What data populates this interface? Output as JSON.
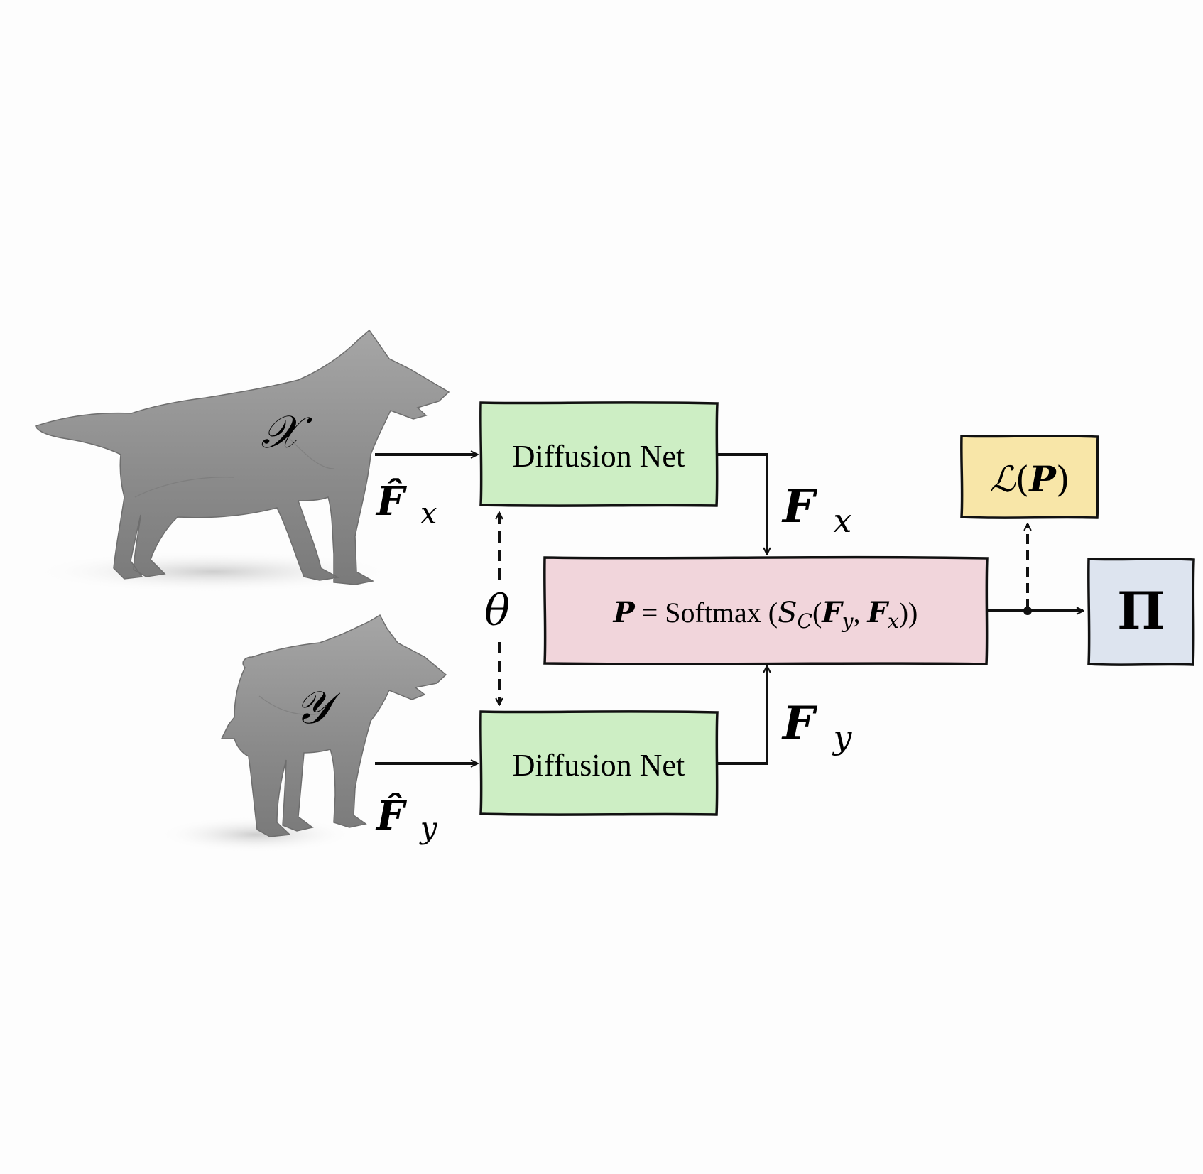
{
  "shapes": {
    "x_label": "𝒳",
    "y_label": "𝒴"
  },
  "inputs": {
    "fx_hat": {
      "base": "F̂",
      "sub": "x"
    },
    "fy_hat": {
      "base": "F̂",
      "sub": "y"
    }
  },
  "diffusion_net_top": {
    "label": "Diffusion Net"
  },
  "diffusion_net_bottom": {
    "label": "Diffusion Net"
  },
  "shared_weights": {
    "label": "θ"
  },
  "outputs": {
    "fx": {
      "base": "F",
      "sub": "x"
    },
    "fy": {
      "base": "F",
      "sub": "y"
    }
  },
  "softmax_box": {
    "lhs": "P",
    "eq": " = ",
    "func": "Softmax",
    "open": " (",
    "s": "S",
    "s_sub": "C",
    "args_open": "(",
    "arg1": "F",
    "arg1_sub": "y",
    "comma": ", ",
    "arg2": "F",
    "arg2_sub": "x",
    "close": "))"
  },
  "loss_box": {
    "func": "ℒ",
    "open": "(",
    "arg": "P",
    "close": ")"
  },
  "output_box": {
    "label": "Π"
  },
  "colors": {
    "diffusion_fill": "#cdeec4",
    "softmax_fill": "#f1d5db",
    "loss_fill": "#f8e6a8",
    "output_fill": "#dde4ef",
    "stroke": "#111111",
    "wolf_body": "#8f8f8f",
    "wolf_shadow": "#cfcfcf"
  }
}
